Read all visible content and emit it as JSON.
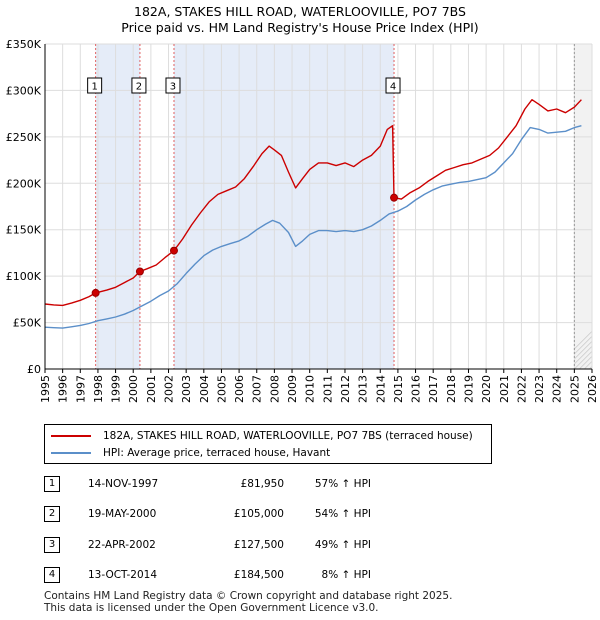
{
  "chart_data": {
    "type": "line",
    "title": "182A, STAKES HILL ROAD, WATERLOOVILLE, PO7 7BS",
    "subtitle": "Price paid vs. HM Land Registry's House Price Index (HPI)",
    "xlim": [
      1995,
      2026
    ],
    "ylim": [
      0,
      350000
    ],
    "x_ticks": [
      1995,
      1996,
      1997,
      1998,
      1999,
      2000,
      2001,
      2002,
      2003,
      2004,
      2005,
      2006,
      2007,
      2008,
      2009,
      2010,
      2011,
      2012,
      2013,
      2014,
      2015,
      2016,
      2017,
      2018,
      2019,
      2020,
      2021,
      2022,
      2023,
      2024,
      2025,
      2026
    ],
    "y_ticks": [
      {
        "value": 0,
        "label": "£0"
      },
      {
        "value": 50000,
        "label": "£50K"
      },
      {
        "value": 100000,
        "label": "£100K"
      },
      {
        "value": 150000,
        "label": "£150K"
      },
      {
        "value": 200000,
        "label": "£200K"
      },
      {
        "value": 250000,
        "label": "£250K"
      },
      {
        "value": 300000,
        "label": "£300K"
      },
      {
        "value": 350000,
        "label": "£350K"
      }
    ],
    "grid": true,
    "shaded_ranges": [
      [
        1997.87,
        2000.38
      ],
      [
        2002.31,
        2014.78
      ]
    ],
    "projection_start": 2025.0,
    "series": [
      {
        "name": "182A, STAKES HILL ROAD, WATERLOOVILLE, PO7 7BS (terraced house)",
        "color": "#cc0000",
        "points": [
          [
            1995.0,
            70000
          ],
          [
            1995.5,
            69000
          ],
          [
            1996.0,
            68500
          ],
          [
            1996.5,
            71000
          ],
          [
            1997.0,
            74000
          ],
          [
            1997.5,
            78000
          ],
          [
            1997.87,
            81950
          ],
          [
            1998.5,
            85000
          ],
          [
            1999.0,
            88000
          ],
          [
            1999.5,
            93000
          ],
          [
            2000.0,
            98000
          ],
          [
            2000.38,
            105000
          ],
          [
            2000.8,
            108000
          ],
          [
            2001.3,
            112000
          ],
          [
            2001.8,
            120000
          ],
          [
            2002.31,
            127500
          ],
          [
            2002.8,
            140000
          ],
          [
            2003.3,
            155000
          ],
          [
            2003.8,
            168000
          ],
          [
            2004.3,
            180000
          ],
          [
            2004.8,
            188000
          ],
          [
            2005.3,
            192000
          ],
          [
            2005.8,
            196000
          ],
          [
            2006.3,
            205000
          ],
          [
            2006.8,
            218000
          ],
          [
            2007.3,
            232000
          ],
          [
            2007.7,
            240000
          ],
          [
            2008.0,
            236000
          ],
          [
            2008.4,
            230000
          ],
          [
            2008.8,
            212000
          ],
          [
            2009.2,
            195000
          ],
          [
            2009.6,
            205000
          ],
          [
            2010.0,
            215000
          ],
          [
            2010.5,
            222000
          ],
          [
            2011.0,
            222000
          ],
          [
            2011.5,
            219000
          ],
          [
            2012.0,
            222000
          ],
          [
            2012.5,
            218000
          ],
          [
            2013.0,
            225000
          ],
          [
            2013.5,
            230000
          ],
          [
            2014.0,
            240000
          ],
          [
            2014.4,
            258000
          ],
          [
            2014.7,
            262000
          ],
          [
            2014.78,
            184500
          ],
          [
            2015.2,
            183000
          ],
          [
            2015.7,
            190000
          ],
          [
            2016.2,
            195000
          ],
          [
            2016.7,
            202000
          ],
          [
            2017.2,
            208000
          ],
          [
            2017.7,
            214000
          ],
          [
            2018.2,
            217000
          ],
          [
            2018.7,
            220000
          ],
          [
            2019.2,
            222000
          ],
          [
            2019.7,
            226000
          ],
          [
            2020.2,
            230000
          ],
          [
            2020.7,
            238000
          ],
          [
            2021.2,
            250000
          ],
          [
            2021.7,
            262000
          ],
          [
            2022.2,
            280000
          ],
          [
            2022.6,
            290000
          ],
          [
            2023.0,
            285000
          ],
          [
            2023.5,
            278000
          ],
          [
            2024.0,
            280000
          ],
          [
            2024.5,
            276000
          ],
          [
            2025.0,
            282000
          ],
          [
            2025.4,
            290000
          ]
        ]
      },
      {
        "name": "HPI: Average price, terraced house, Havant",
        "color": "#5b8fc9",
        "points": [
          [
            1995.0,
            45000
          ],
          [
            1995.5,
            44500
          ],
          [
            1996.0,
            44000
          ],
          [
            1996.5,
            45500
          ],
          [
            1997.0,
            47000
          ],
          [
            1997.5,
            49000
          ],
          [
            1998.0,
            52000
          ],
          [
            1998.5,
            54000
          ],
          [
            1999.0,
            56000
          ],
          [
            1999.5,
            59000
          ],
          [
            2000.0,
            63000
          ],
          [
            2000.5,
            68000
          ],
          [
            2001.0,
            73000
          ],
          [
            2001.5,
            79000
          ],
          [
            2002.0,
            84000
          ],
          [
            2002.5,
            92000
          ],
          [
            2003.0,
            103000
          ],
          [
            2003.5,
            113000
          ],
          [
            2004.0,
            122000
          ],
          [
            2004.5,
            128000
          ],
          [
            2005.0,
            132000
          ],
          [
            2005.5,
            135000
          ],
          [
            2006.0,
            138000
          ],
          [
            2006.5,
            143000
          ],
          [
            2007.0,
            150000
          ],
          [
            2007.5,
            156000
          ],
          [
            2007.9,
            160000
          ],
          [
            2008.3,
            157000
          ],
          [
            2008.8,
            147000
          ],
          [
            2009.2,
            132000
          ],
          [
            2009.6,
            138000
          ],
          [
            2010.0,
            145000
          ],
          [
            2010.5,
            149000
          ],
          [
            2011.0,
            149000
          ],
          [
            2011.5,
            148000
          ],
          [
            2012.0,
            149000
          ],
          [
            2012.5,
            148000
          ],
          [
            2013.0,
            150000
          ],
          [
            2013.5,
            154000
          ],
          [
            2014.0,
            160000
          ],
          [
            2014.5,
            167000
          ],
          [
            2015.0,
            170000
          ],
          [
            2015.5,
            175000
          ],
          [
            2016.0,
            182000
          ],
          [
            2016.5,
            188000
          ],
          [
            2017.0,
            193000
          ],
          [
            2017.5,
            197000
          ],
          [
            2018.0,
            199000
          ],
          [
            2018.5,
            201000
          ],
          [
            2019.0,
            202000
          ],
          [
            2019.5,
            204000
          ],
          [
            2020.0,
            206000
          ],
          [
            2020.5,
            212000
          ],
          [
            2021.0,
            222000
          ],
          [
            2021.5,
            232000
          ],
          [
            2022.0,
            247000
          ],
          [
            2022.5,
            260000
          ],
          [
            2023.0,
            258000
          ],
          [
            2023.5,
            254000
          ],
          [
            2024.0,
            255000
          ],
          [
            2024.5,
            256000
          ],
          [
            2025.0,
            260000
          ],
          [
            2025.4,
            262000
          ]
        ]
      }
    ],
    "sales": [
      {
        "label": "1",
        "x": 1997.87,
        "y": 81950
      },
      {
        "label": "2",
        "x": 2000.38,
        "y": 105000
      },
      {
        "label": "3",
        "x": 2002.31,
        "y": 127500
      },
      {
        "label": "4",
        "x": 2014.78,
        "y": 184500
      }
    ],
    "legend": [
      {
        "label": "182A, STAKES HILL ROAD, WATERLOOVILLE, PO7 7BS (terraced house)",
        "color": "#cc0000"
      },
      {
        "label": "HPI: Average price, terraced house, Havant",
        "color": "#5b8fc9"
      }
    ]
  },
  "transactions": [
    {
      "num": "1",
      "date": "14-NOV-1997",
      "price": "£81,950",
      "hpi": "57% ↑ HPI"
    },
    {
      "num": "2",
      "date": "19-MAY-2000",
      "price": "£105,000",
      "hpi": "54% ↑ HPI"
    },
    {
      "num": "3",
      "date": "22-APR-2002",
      "price": "£127,500",
      "hpi": "49% ↑ HPI"
    },
    {
      "num": "4",
      "date": "13-OCT-2014",
      "price": "£184,500",
      "hpi": "8% ↑ HPI"
    }
  ],
  "footer": {
    "line1": "Contains HM Land Registry data © Crown copyright and database right 2025.",
    "line2": "This data is licensed under the Open Government Licence v3.0."
  }
}
